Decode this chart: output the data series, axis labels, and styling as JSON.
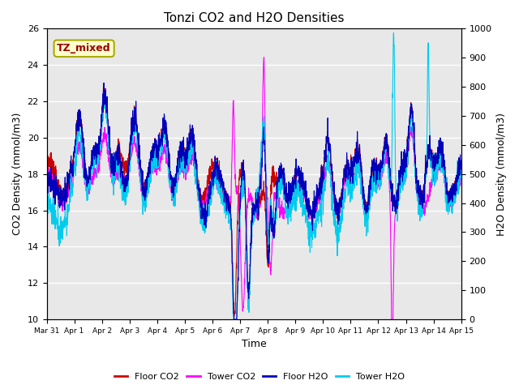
{
  "title": "Tonzi CO2 and H2O Densities",
  "xlabel": "Time",
  "ylabel_left": "CO2 Density (mmol/m3)",
  "ylabel_right": "H2O Density (mmol/m3)",
  "ylim_left": [
    10,
    26
  ],
  "ylim_right": [
    0,
    1000
  ],
  "yticks_left": [
    10,
    12,
    14,
    16,
    18,
    20,
    22,
    24,
    26
  ],
  "yticks_right": [
    0,
    100,
    200,
    300,
    400,
    500,
    600,
    700,
    800,
    900,
    1000
  ],
  "xtick_labels": [
    "Mar 31",
    "Apr 1",
    "Apr 2",
    "Apr 3",
    "Apr 4",
    "Apr 5",
    "Apr 6",
    "Apr 7",
    "Apr 8",
    "Apr 9",
    "Apr 10",
    "Apr 11",
    "Apr 12",
    "Apr 13",
    "Apr 14",
    "Apr 15"
  ],
  "colors": {
    "floor_co2": "#CC0000",
    "tower_co2": "#FF00FF",
    "floor_h2o": "#0000BB",
    "tower_h2o": "#00CCEE"
  },
  "legend_labels": [
    "Floor CO2",
    "Tower CO2",
    "Floor H2O",
    "Tower H2O"
  ],
  "annotation_text": "TZ_mixed",
  "annotation_color": "#990000",
  "annotation_bg": "#FFFFCC",
  "annotation_border": "#AAAA00",
  "background_color": "#E8E8E8",
  "grid_color": "#FFFFFF",
  "n_points": 2160,
  "days": 15,
  "seed": 7
}
